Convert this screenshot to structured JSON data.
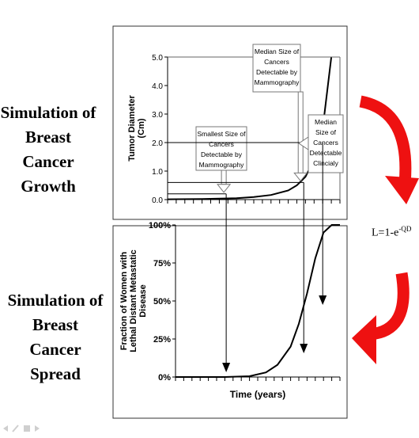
{
  "left_labels": {
    "growth": [
      "Simulation of",
      "Breast Cancer",
      "Growth"
    ],
    "spread": [
      "Simulation of",
      "Breast Cancer",
      "Spread"
    ]
  },
  "formula": {
    "base": "L=1-e",
    "exponent": "-QD"
  },
  "colors": {
    "curved_arrow": "#ee1111",
    "axes": "#000000",
    "panel_border": "#333333",
    "callout_border": "#777777"
  },
  "footer_icons": [
    "back-arrow-icon",
    "pen-icon",
    "menu-icon",
    "forward-arrow-icon"
  ],
  "chart_data": [
    {
      "type": "line",
      "title": "",
      "ylabel_lines": [
        "Tumor Diameter",
        "(Cm)"
      ],
      "xlabel": "",
      "ylim": [
        0,
        5
      ],
      "yticks": [
        0,
        1,
        2,
        3,
        4,
        5
      ],
      "ytick_labels": [
        "0.0",
        "1.0",
        "2.0",
        "3.0",
        "4.0",
        "5.0"
      ],
      "x_range": [
        0,
        1
      ],
      "curve": "exponential growth",
      "series": [
        {
          "x": [
            0.0,
            0.2,
            0.4,
            0.5,
            0.6,
            0.7,
            0.75,
            0.8,
            0.85,
            0.9,
            0.95
          ],
          "y": [
            0.01,
            0.02,
            0.05,
            0.09,
            0.16,
            0.32,
            0.5,
            0.8,
            1.4,
            2.5,
            5.0
          ]
        }
      ],
      "reference_levels": [
        {
          "label": "Smallest Size of Cancers Detectable by Mammography",
          "y": 0.2,
          "x": 0.34
        },
        {
          "label": "Median Size of Cancers Detectable by Mammography",
          "y": 0.6,
          "x": 0.79
        },
        {
          "label": "Median Size of Cancers Detectable Clincialy",
          "y": 2.0,
          "x": 0.9
        }
      ],
      "max_level": 5.0
    },
    {
      "type": "line",
      "title": "",
      "ylabel_lines": [
        "Fraction of Women with",
        "Lethal Distant Metastatic",
        "Disease"
      ],
      "xlabel": "Time (years)",
      "ylim": [
        0,
        100
      ],
      "yticks": [
        0,
        25,
        50,
        75,
        100
      ],
      "ytick_labels": [
        "0%",
        "25%",
        "50%",
        "75%",
        "100%"
      ],
      "x_range": [
        0,
        1
      ],
      "curve": "sigmoid",
      "series": [
        {
          "x": [
            0.0,
            0.3,
            0.45,
            0.55,
            0.62,
            0.7,
            0.75,
            0.8,
            0.85,
            0.9,
            0.95,
            1.0
          ],
          "y": [
            0,
            0,
            0.5,
            3,
            8,
            20,
            35,
            55,
            78,
            95,
            100,
            100
          ]
        }
      ],
      "marker_arrows_at_x": [
        0.34,
        0.79,
        0.9
      ]
    }
  ]
}
